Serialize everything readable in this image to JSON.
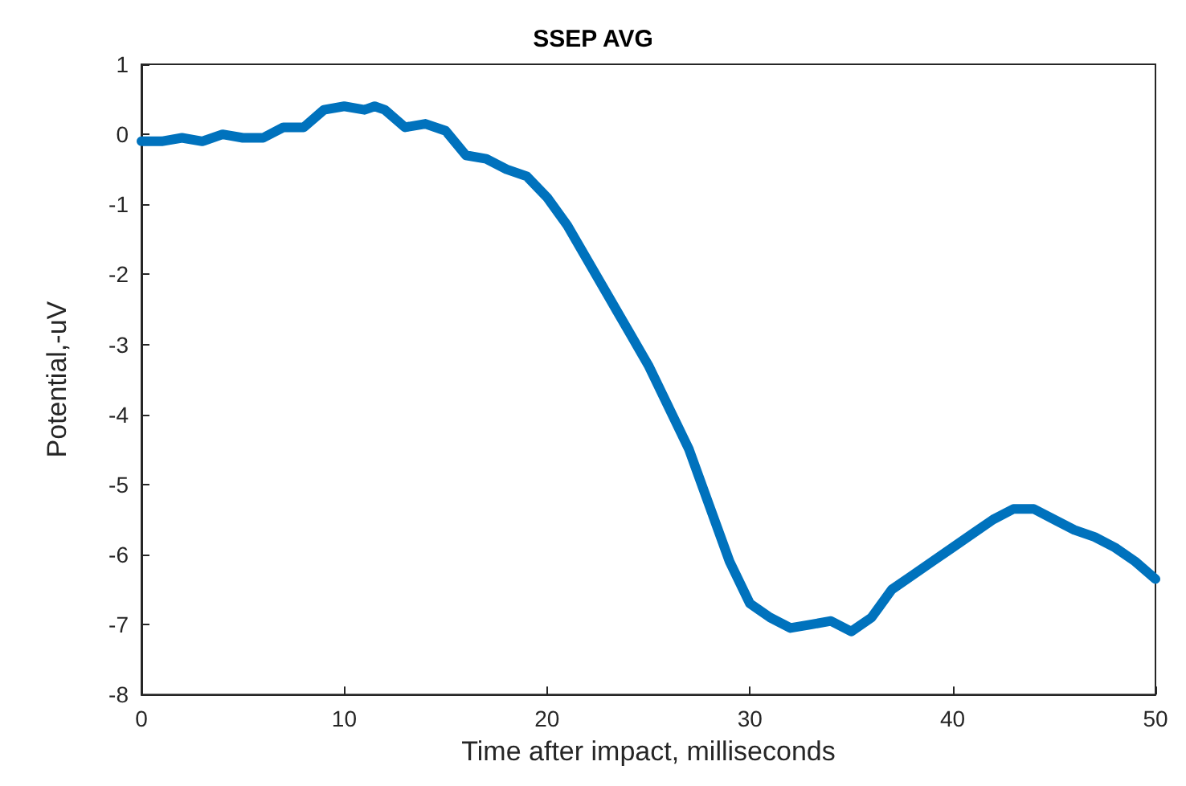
{
  "chart_data": {
    "type": "line",
    "title": "SSEP AVG",
    "xlabel": "Time after impact, milliseconds",
    "ylabel": "Potential,-uV",
    "x": [
      0,
      1,
      2,
      3,
      4,
      5,
      6,
      7,
      8,
      9,
      10,
      11,
      11.5,
      12,
      13,
      14,
      15,
      16,
      17,
      18,
      19,
      20,
      21,
      22,
      23,
      24,
      25,
      26,
      27,
      28,
      29,
      30,
      31,
      32,
      33,
      34,
      35,
      36,
      37,
      38,
      39,
      40,
      41,
      42,
      43,
      44,
      45,
      46,
      47,
      48,
      49,
      50
    ],
    "series": [
      {
        "color": "#0072bd",
        "values": [
          -0.1,
          -0.1,
          -0.05,
          -0.1,
          0,
          -0.05,
          -0.05,
          0.1,
          0.1,
          0.35,
          0.4,
          0.35,
          0.4,
          0.35,
          0.1,
          0.15,
          0.05,
          -0.3,
          -0.35,
          -0.5,
          -0.6,
          -0.9,
          -1.3,
          -1.8,
          -2.3,
          -2.8,
          -3.3,
          -3.9,
          -4.5,
          -5.3,
          -6.1,
          -6.7,
          -6.9,
          -7.05,
          -7,
          -6.95,
          -7.1,
          -6.9,
          -6.5,
          -6.3,
          -6.1,
          -5.9,
          -5.7,
          -5.5,
          -5.35,
          -5.35,
          -5.5,
          -5.65,
          -5.75,
          -5.9,
          -6.1,
          -6.35
        ]
      }
    ],
    "xlim": [
      0,
      50
    ],
    "xticks": [
      0,
      10,
      20,
      30,
      40,
      50
    ],
    "ylim": [
      -8,
      1
    ],
    "yticks": [
      -8,
      -7,
      -6,
      -5,
      -4,
      -3,
      -2,
      -1,
      0,
      1
    ],
    "grid": false,
    "marker": "none",
    "line_style": "solid"
  }
}
